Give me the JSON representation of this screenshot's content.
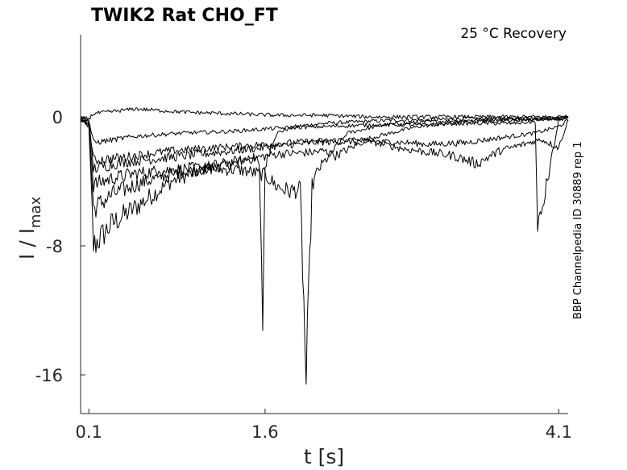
{
  "chart_data": {
    "type": "line",
    "title": "TWIK2  Rat  CHO_FT",
    "annotation": "25 °C  Recovery",
    "side_label": "BBP Channelpedia ID 30889 rep 1",
    "xlabel": "t [s]",
    "ylabel_main": "I / I",
    "ylabel_sub": "max",
    "xlim": [
      0.03,
      4.18
    ],
    "ylim": [
      -18.4,
      5.1
    ],
    "xticks": [
      {
        "value": 0.1,
        "label": "0.1"
      },
      {
        "value": 1.6,
        "label": "1.6"
      },
      {
        "value": 4.1,
        "label": "4.1"
      }
    ],
    "yticks": [
      {
        "value": 0,
        "label": "0"
      },
      {
        "value": -8,
        "label": "-8"
      },
      {
        "value": -16,
        "label": "-16"
      }
    ],
    "grid": false,
    "line_color": "#000000",
    "series": [
      {
        "x": [
          0.03,
          0.1,
          0.14,
          0.3,
          0.5,
          0.8,
          1.1,
          1.35,
          1.5,
          1.55,
          1.58,
          1.6,
          1.65,
          1.7,
          1.85,
          2.1,
          2.4,
          2.7,
          3.0,
          3.3,
          3.6,
          3.9,
          4.05,
          4.1,
          4.18
        ],
        "y": [
          -0.2,
          -0.6,
          -8.0,
          -6.6,
          -5.6,
          -4.0,
          -3.2,
          -2.9,
          -2.4,
          -3.0,
          -12.7,
          -3.1,
          -1.8,
          -1.0,
          -0.6,
          -0.4,
          -0.3,
          -0.2,
          -0.2,
          -0.1,
          -0.1,
          -0.1,
          -0.1,
          -0.1,
          0.0
        ]
      },
      {
        "x": [
          0.03,
          0.1,
          0.14,
          0.3,
          0.5,
          0.8,
          1.1,
          1.4,
          1.6,
          1.7,
          1.8,
          1.9,
          1.95,
          2.0,
          2.05,
          2.3,
          2.6,
          3.0,
          3.4,
          3.8,
          4.1,
          4.18
        ],
        "y": [
          -0.2,
          -0.5,
          -5.7,
          -4.8,
          -4.2,
          -3.5,
          -3.2,
          -3.3,
          -3.6,
          -4.3,
          -4.6,
          -4.5,
          -16.5,
          -4.3,
          -3.3,
          -1.0,
          -0.5,
          -0.3,
          -0.2,
          -0.1,
          -0.1,
          0.0
        ]
      },
      {
        "x": [
          0.03,
          0.1,
          0.14,
          0.3,
          0.5,
          0.8,
          1.1,
          1.4,
          1.7,
          2.0,
          2.1,
          2.2,
          2.5,
          2.9,
          3.3,
          3.7,
          4.1,
          4.18
        ],
        "y": [
          -0.2,
          -0.4,
          -4.2,
          -3.8,
          -3.5,
          -3.3,
          -3.1,
          -2.7,
          -2.3,
          -2.2,
          -2.1,
          -2.4,
          -1.3,
          -0.6,
          -0.3,
          -0.2,
          -0.1,
          0.0
        ]
      },
      {
        "x": [
          0.03,
          0.1,
          0.14,
          0.4,
          0.8,
          1.2,
          1.6,
          2.0,
          2.5,
          2.8,
          3.0,
          3.3,
          3.6,
          3.9,
          4.1,
          4.18
        ],
        "y": [
          -0.2,
          -0.4,
          -3.2,
          -2.8,
          -2.5,
          -2.2,
          -1.9,
          -1.6,
          -1.5,
          -1.6,
          -1.7,
          -1.6,
          -1.3,
          -1.0,
          -0.6,
          -0.2
        ]
      },
      {
        "x": [
          0.03,
          0.1,
          0.14,
          0.4,
          0.8,
          1.2,
          1.6,
          2.0,
          2.4,
          2.8,
          3.2,
          3.4,
          3.6,
          3.8,
          3.95,
          4.1,
          4.18
        ],
        "y": [
          -0.2,
          -0.3,
          -2.7,
          -2.5,
          -2.1,
          -1.9,
          -1.7,
          -1.5,
          -1.4,
          -2.0,
          -2.4,
          -2.9,
          -2.1,
          -1.7,
          -1.4,
          -1.9,
          -0.2
        ]
      },
      {
        "x": [
          0.03,
          0.1,
          0.14,
          0.5,
          0.9,
          1.3,
          1.7,
          2.1,
          2.5,
          2.9,
          3.3,
          3.7,
          3.9,
          3.92,
          4.1,
          4.18
        ],
        "y": [
          -0.1,
          -0.2,
          -1.6,
          -1.2,
          -1.0,
          -0.9,
          -0.7,
          -0.6,
          -0.5,
          -0.5,
          -0.4,
          -0.4,
          -0.3,
          -7.2,
          -0.2,
          0.0
        ]
      },
      {
        "x": [
          0.03,
          0.1,
          0.14,
          0.5,
          0.9,
          1.3,
          1.7,
          2.1,
          2.5,
          2.9,
          3.3,
          3.7,
          4.1,
          4.18
        ],
        "y": [
          -0.1,
          -0.1,
          0.2,
          0.5,
          0.3,
          0.2,
          0.1,
          0.1,
          0.0,
          0.0,
          0.0,
          0.0,
          0.0,
          0.0
        ]
      }
    ]
  }
}
